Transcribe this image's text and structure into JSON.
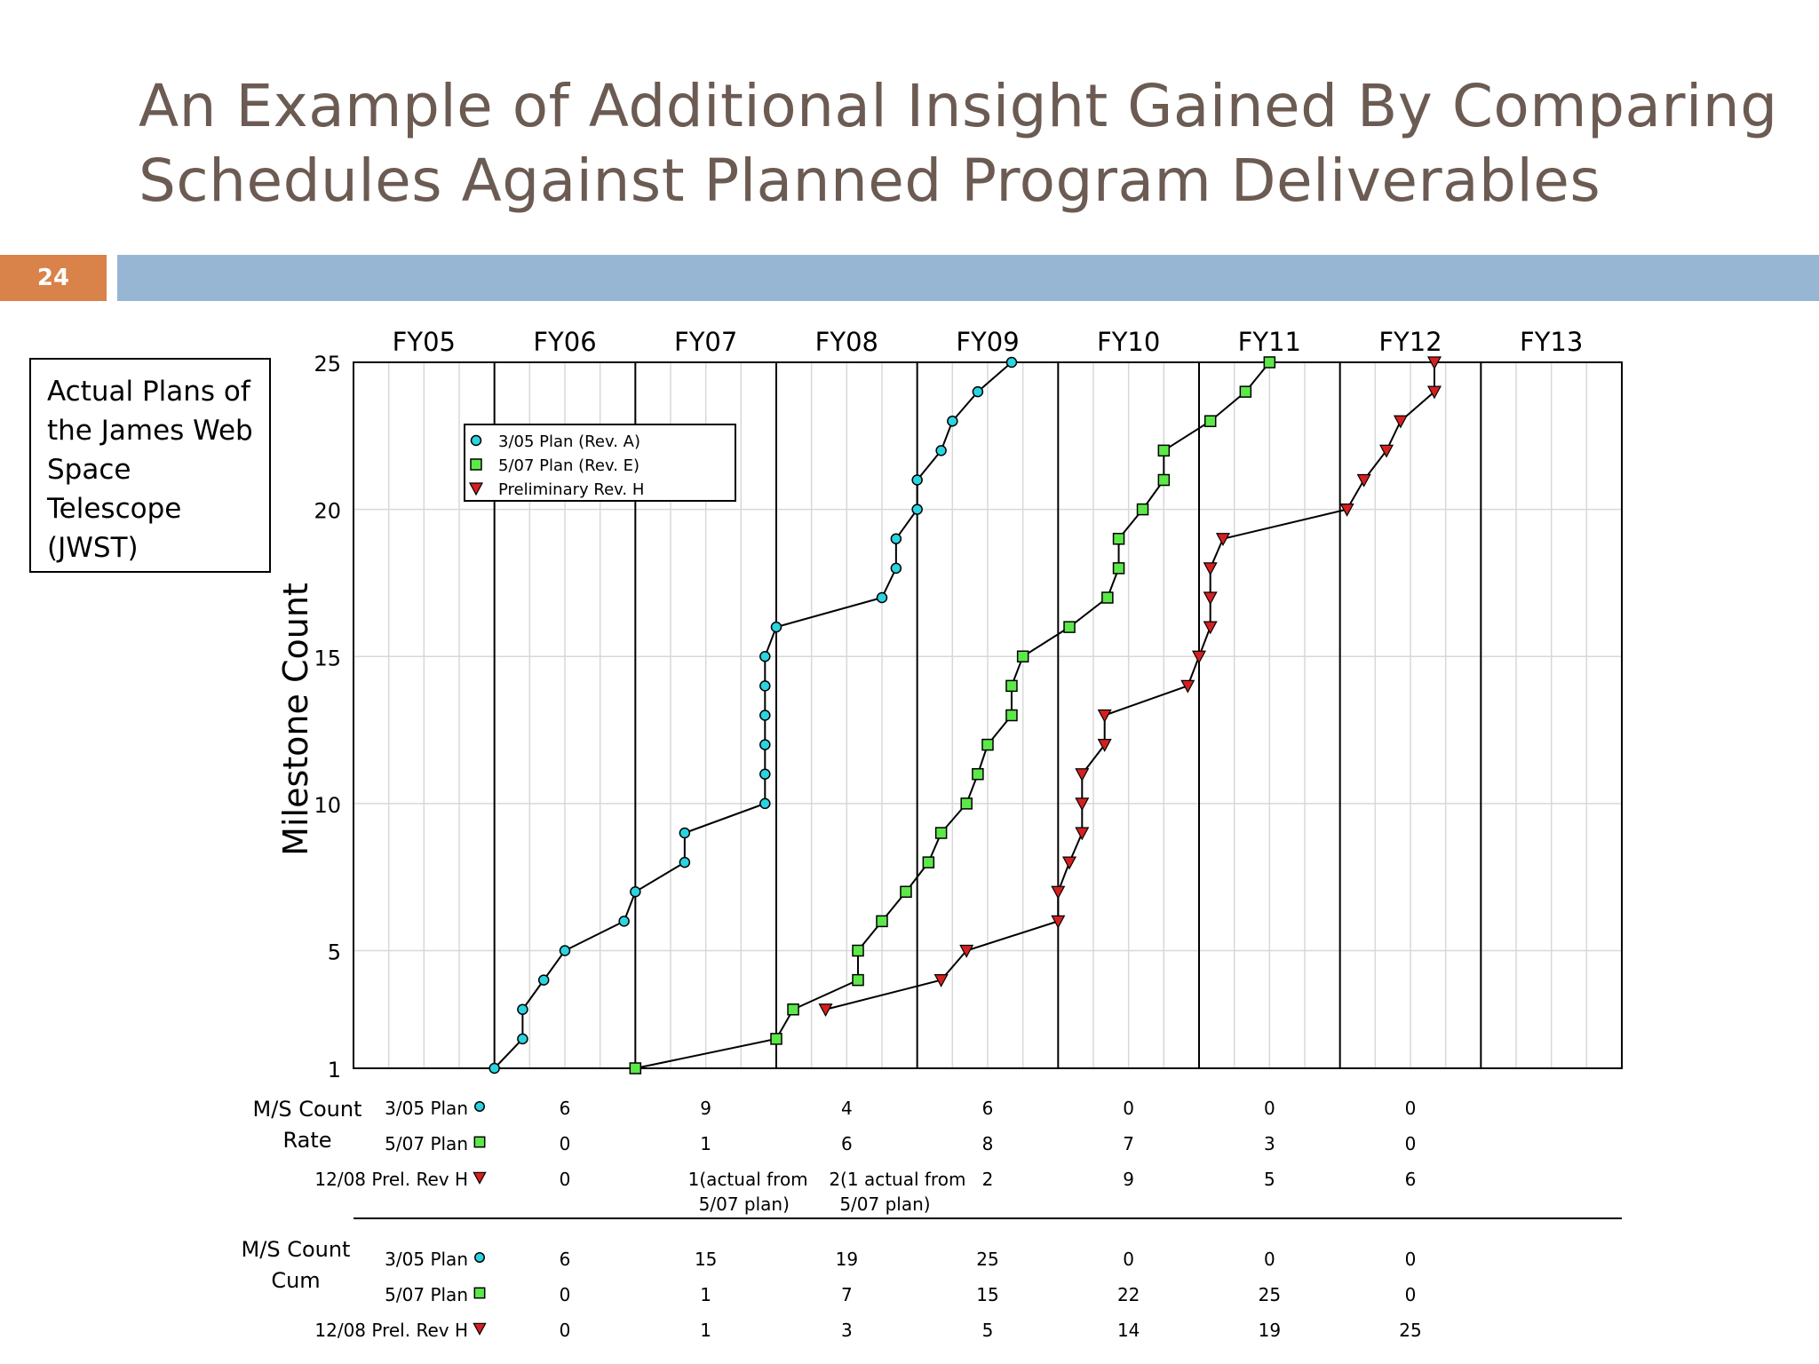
{
  "slide": {
    "number": "24",
    "title_lines": [
      "An Example of Additional Insight Gained By Comparing",
      "Schedules Against Planned Program Deliverables"
    ],
    "caption_lines": [
      "Actual Plans of",
      "the James Web",
      "Space",
      "Telescope",
      "(JWST)"
    ]
  },
  "colors": {
    "title": "#6b5b52",
    "accent_box": "#d9824a",
    "band": "#96b6d4",
    "rev_a": "#2ad4e0",
    "rev_e": "#5de84a",
    "rev_h": "#d42020"
  },
  "chart_data": {
    "type": "line",
    "ylabel": "Milestone Count",
    "ylim": [
      1,
      25
    ],
    "yticks": [
      "1",
      "5",
      "10",
      "15",
      "20",
      "25"
    ],
    "ytick_values": [
      1,
      5,
      10,
      15,
      20,
      25
    ],
    "xlim": [
      0,
      9
    ],
    "fiscal_years": [
      "FY05",
      "FY06",
      "FY07",
      "FY08",
      "FY09",
      "FY10",
      "FY11",
      "FY12",
      "FY13"
    ],
    "grid": true,
    "legend_position": "top-left",
    "series": [
      {
        "name": "3/05 Plan (Rev. A)",
        "marker": "circle",
        "color": "#2ad4e0",
        "points": [
          [
            1.0,
            1
          ],
          [
            1.2,
            2
          ],
          [
            1.2,
            3
          ],
          [
            1.35,
            4
          ],
          [
            1.5,
            5
          ],
          [
            1.92,
            6
          ],
          [
            2.0,
            7
          ],
          [
            2.35,
            8
          ],
          [
            2.35,
            9
          ],
          [
            2.92,
            10
          ],
          [
            2.92,
            11
          ],
          [
            2.92,
            12
          ],
          [
            2.92,
            13
          ],
          [
            2.92,
            14
          ],
          [
            2.92,
            15
          ],
          [
            3.0,
            16
          ],
          [
            3.75,
            17
          ],
          [
            3.85,
            18
          ],
          [
            3.85,
            19
          ],
          [
            4.0,
            20
          ],
          [
            4.0,
            21
          ],
          [
            4.17,
            22
          ],
          [
            4.25,
            23
          ],
          [
            4.43,
            24
          ],
          [
            4.67,
            25
          ]
        ]
      },
      {
        "name": "5/07 Plan (Rev. E)",
        "marker": "square",
        "color": "#5de84a",
        "points": [
          [
            2.0,
            1
          ],
          [
            3.0,
            2
          ],
          [
            3.12,
            3
          ],
          [
            3.58,
            4
          ],
          [
            3.58,
            5
          ],
          [
            3.75,
            6
          ],
          [
            3.92,
            7
          ],
          [
            4.08,
            8
          ],
          [
            4.17,
            9
          ],
          [
            4.35,
            10
          ],
          [
            4.43,
            11
          ],
          [
            4.5,
            12
          ],
          [
            4.67,
            13
          ],
          [
            4.67,
            14
          ],
          [
            4.75,
            15
          ],
          [
            5.08,
            16
          ],
          [
            5.35,
            17
          ],
          [
            5.43,
            18
          ],
          [
            5.43,
            19
          ],
          [
            5.6,
            20
          ],
          [
            5.75,
            21
          ],
          [
            5.75,
            22
          ],
          [
            6.08,
            23
          ],
          [
            6.33,
            24
          ],
          [
            6.5,
            25
          ]
        ]
      },
      {
        "name": "Preliminary Rev. H",
        "marker": "triangle",
        "color": "#d42020",
        "points": [
          [
            3.35,
            3
          ],
          [
            4.17,
            4
          ],
          [
            4.35,
            5
          ],
          [
            5.0,
            6
          ],
          [
            5.0,
            7
          ],
          [
            5.08,
            8
          ],
          [
            5.17,
            9
          ],
          [
            5.17,
            10
          ],
          [
            5.17,
            11
          ],
          [
            5.33,
            12
          ],
          [
            5.33,
            13
          ],
          [
            5.92,
            14
          ],
          [
            6.0,
            15
          ],
          [
            6.08,
            16
          ],
          [
            6.08,
            17
          ],
          [
            6.08,
            18
          ],
          [
            6.17,
            19
          ],
          [
            7.05,
            20
          ],
          [
            7.17,
            21
          ],
          [
            7.33,
            22
          ],
          [
            7.43,
            23
          ],
          [
            7.67,
            24
          ],
          [
            7.67,
            25
          ]
        ]
      }
    ]
  },
  "table": {
    "rate_label_lines": [
      "M/S Count",
      "Rate"
    ],
    "cum_label_lines": [
      "M/S Count",
      "Cum"
    ],
    "rate_rows": [
      {
        "label": "3/05 Plan",
        "marker": "circle",
        "values": [
          "6",
          "9",
          "4",
          "6",
          "0",
          "0",
          "0"
        ]
      },
      {
        "label": "5/07 Plan",
        "marker": "square",
        "values": [
          "0",
          "1",
          "6",
          "8",
          "7",
          "3",
          "0"
        ]
      },
      {
        "label": "12/08 Prel. Rev H",
        "marker": "triangle",
        "values": [
          "0",
          "1(actual from",
          "2(1 actual from",
          "2",
          "9",
          "5",
          "6"
        ],
        "values_line2": [
          "",
          "5/07 plan)",
          "5/07 plan)",
          "",
          "",
          "",
          ""
        ]
      }
    ],
    "cum_rows": [
      {
        "label": "3/05 Plan",
        "marker": "circle",
        "values": [
          "6",
          "15",
          "19",
          "25",
          "0",
          "0",
          "0"
        ]
      },
      {
        "label": "5/07 Plan",
        "marker": "square",
        "values": [
          "0",
          "1",
          "7",
          "15",
          "22",
          "25",
          "0"
        ]
      },
      {
        "label": "12/08 Prel. Rev H",
        "marker": "triangle",
        "values": [
          "0",
          "1",
          "3",
          "5",
          "14",
          "19",
          "25"
        ]
      }
    ]
  }
}
